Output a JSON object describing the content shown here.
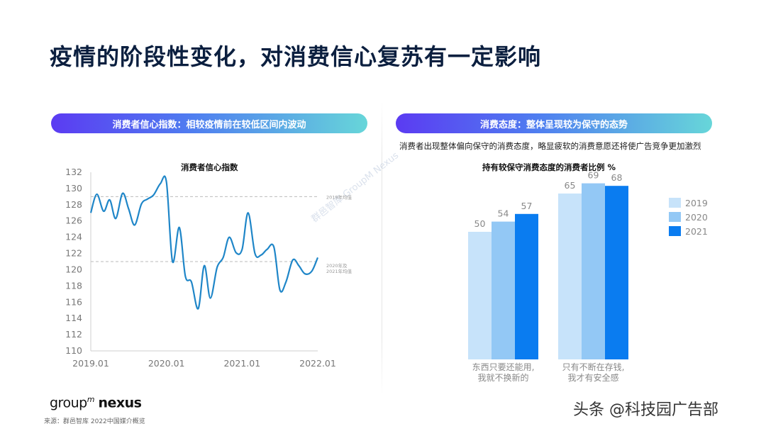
{
  "title": "疫情的阶段性变化，对消费信心复苏有一定影响",
  "left_pill": "消费者信心指数：相较疫情前在较低区间内波动",
  "right_pill": "消费态度：整体呈现较为保守的态势",
  "right_subtitle": "消费者出现整体偏向保守的消费态度，略显疲软的消费意愿还将使广告竞争更加激烈",
  "watermark_diag": "群邑智库 GroupM Nexus",
  "logo": {
    "word": "group",
    "super": "m",
    "nexus": "nexus"
  },
  "source": "来源：群邑智库 2022中国媒介概览",
  "toutiao": "头条 @科技园广告部",
  "colors": {
    "line": "#1f86c8",
    "bar2019": "#c7e3fa",
    "bar2020": "#93c8f5",
    "bar2021": "#0a7cf0"
  },
  "chart_data": [
    {
      "type": "line",
      "title": "消费者信心指数",
      "ylim": [
        110,
        132
      ],
      "yticks": [
        "110",
        "112",
        "114",
        "116",
        "118",
        "120",
        "122",
        "124",
        "126",
        "128",
        "130",
        "132"
      ],
      "xlim": [
        2019.0,
        2022.0
      ],
      "xticks": [
        {
          "x": 2019.0,
          "label": "2019.01"
        },
        {
          "x": 2020.0,
          "label": "2020.01"
        },
        {
          "x": 2021.0,
          "label": "2021.01"
        },
        {
          "x": 2022.0,
          "label": "2022.01"
        }
      ],
      "reference_lines": [
        {
          "y": 129.0,
          "label": "2019年均值"
        },
        {
          "y": 121.0,
          "label_lines": [
            "2020年及",
            "2021年均值"
          ]
        }
      ],
      "points": [
        [
          2019.0,
          127.0
        ],
        [
          2019.08,
          129.3
        ],
        [
          2019.17,
          127.2
        ],
        [
          2019.25,
          128.6
        ],
        [
          2019.33,
          126.3
        ],
        [
          2019.42,
          129.4
        ],
        [
          2019.5,
          127.5
        ],
        [
          2019.58,
          125.5
        ],
        [
          2019.67,
          128.1
        ],
        [
          2019.75,
          128.7
        ],
        [
          2019.83,
          129.2
        ],
        [
          2019.92,
          130.6
        ],
        [
          2020.0,
          130.8
        ],
        [
          2020.08,
          121.0
        ],
        [
          2020.17,
          125.2
        ],
        [
          2020.25,
          119.2
        ],
        [
          2020.33,
          118.5
        ],
        [
          2020.42,
          115.2
        ],
        [
          2020.5,
          120.5
        ],
        [
          2020.58,
          116.5
        ],
        [
          2020.67,
          120.3
        ],
        [
          2020.75,
          121.5
        ],
        [
          2020.83,
          124.0
        ],
        [
          2020.92,
          122.1
        ],
        [
          2021.0,
          122.5
        ],
        [
          2021.08,
          127.0
        ],
        [
          2021.17,
          122.0
        ],
        [
          2021.25,
          121.8
        ],
        [
          2021.33,
          122.5
        ],
        [
          2021.42,
          122.8
        ],
        [
          2021.5,
          117.5
        ],
        [
          2021.58,
          118.5
        ],
        [
          2021.67,
          121.2
        ],
        [
          2021.75,
          120.5
        ],
        [
          2021.83,
          119.5
        ],
        [
          2021.92,
          119.8
        ],
        [
          2022.0,
          121.5
        ]
      ]
    },
    {
      "type": "bar",
      "title": "持有较保守消费态度的消费者比例 %",
      "categories": [
        [
          "东西只要还能用,",
          "我就不换新的"
        ],
        [
          "只有不断在存钱,",
          "我才有安全感"
        ]
      ],
      "ylim": [
        0,
        100
      ],
      "series": [
        {
          "name": "2019",
          "values": [
            50,
            65
          ],
          "color": "#c7e3fa"
        },
        {
          "name": "2020",
          "values": [
            54,
            69
          ],
          "color": "#93c8f5"
        },
        {
          "name": "2021",
          "values": [
            57,
            68
          ],
          "color": "#0a7cf0"
        }
      ]
    }
  ]
}
